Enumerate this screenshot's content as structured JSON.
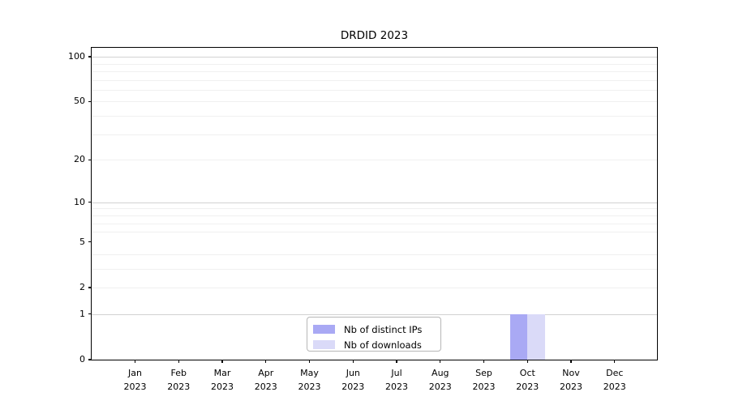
{
  "chart_data": {
    "type": "bar",
    "title": "DRDID 2023",
    "categories": [
      "Jan",
      "Feb",
      "Mar",
      "Apr",
      "May",
      "Jun",
      "Jul",
      "Aug",
      "Sep",
      "Oct",
      "Nov",
      "Dec"
    ],
    "year_label": "2023",
    "series": [
      {
        "name": "Nb of distinct IPs",
        "color": "#a9a9f4",
        "values": [
          0,
          0,
          0,
          0,
          0,
          0,
          0,
          0,
          0,
          1,
          0,
          0
        ]
      },
      {
        "name": "Nb of downloads",
        "color": "#dadaf8",
        "values": [
          0,
          0,
          0,
          0,
          0,
          0,
          0,
          0,
          0,
          1,
          0,
          0
        ]
      }
    ],
    "xlabel": "",
    "ylabel": "",
    "yscale": "log1p",
    "ylim": [
      0,
      115.5
    ],
    "yticks": [
      0,
      1,
      2,
      5,
      10,
      20,
      50,
      100
    ],
    "major_gridlines": [
      1,
      10,
      100
    ],
    "minor_gridlines": [
      2,
      3,
      4,
      6,
      7,
      8,
      9,
      20,
      30,
      40,
      50,
      60,
      70,
      80,
      90
    ],
    "grid": true,
    "legend_position": "lower-center-inside"
  }
}
